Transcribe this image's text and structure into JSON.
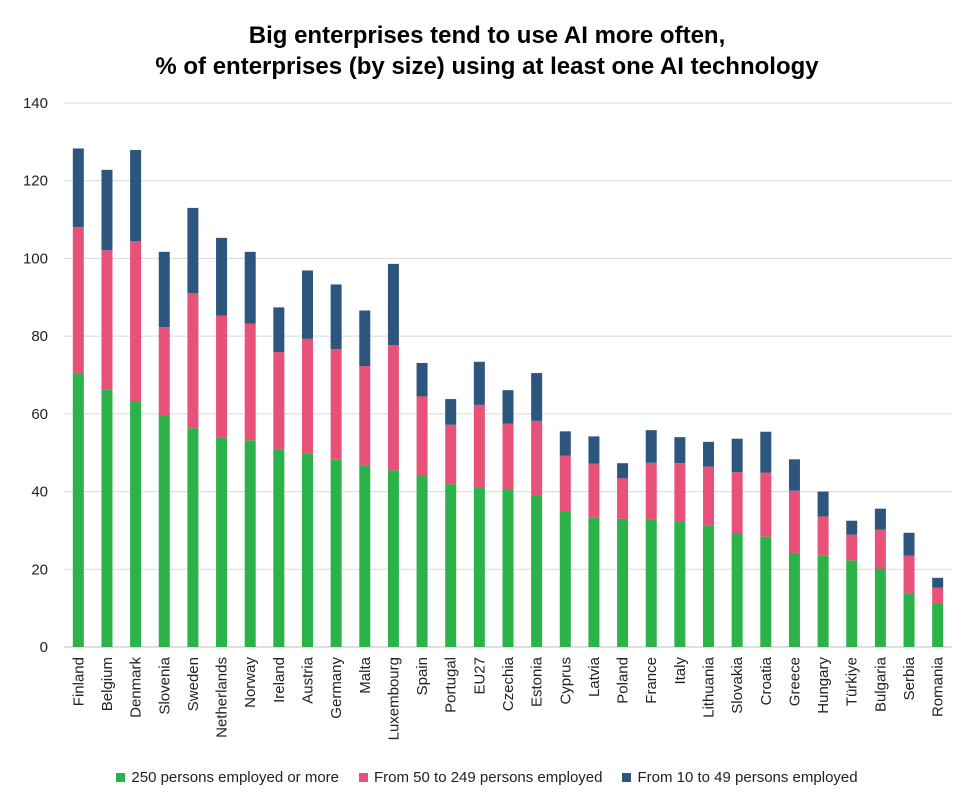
{
  "chart_data": {
    "type": "bar",
    "stacked": true,
    "title": "Big enterprises tend to use AI more often,",
    "subtitle": "% of enterprises (by size) using at least one AI technology",
    "categories": [
      "Finland",
      "Belgium",
      "Denmark",
      "Slovenia",
      "Sweden",
      "Netherlands",
      "Norway",
      "Ireland",
      "Austria",
      "Germany",
      "Malta",
      "Luxembourg",
      "Spain",
      "Portugal",
      "EU27",
      "Czechia",
      "Estonia",
      "Cyprus",
      "Latvia",
      "Poland",
      "France",
      "Italy",
      "Lithuania",
      "Slovakia",
      "Croatia",
      "Greece",
      "Hungary",
      "Türkiye",
      "Bulgaria",
      "Serbia",
      "Romania"
    ],
    "series": [
      {
        "name": "250 persons employed or more",
        "color": "#2bb34a",
        "values": [
          70.4,
          66.2,
          63.3,
          59.7,
          56.3,
          54.0,
          53.2,
          50.8,
          49.9,
          48.2,
          46.6,
          45.5,
          44.0,
          41.9,
          41.2,
          40.4,
          39.0,
          35.0,
          33.4,
          33.0,
          32.7,
          32.4,
          31.3,
          29.2,
          28.4,
          24.2,
          23.5,
          22.3,
          20.2,
          13.8,
          11.3
        ]
      },
      {
        "name": "From 50 to 249 persons employed",
        "color": "#e8527a",
        "values": [
          37.7,
          35.9,
          41.1,
          22.6,
          34.8,
          31.3,
          30.0,
          25.1,
          29.4,
          28.5,
          25.7,
          32.2,
          20.5,
          15.3,
          21.1,
          17.1,
          19.2,
          14.2,
          13.8,
          10.4,
          14.7,
          14.9,
          15.1,
          15.8,
          16.5,
          16.0,
          10.1,
          6.6,
          10.0,
          9.7,
          4.0
        ]
      },
      {
        "name": "From 10 to 49 persons employed",
        "color": "#2d567e",
        "values": [
          20.2,
          20.7,
          23.5,
          19.4,
          21.9,
          20.0,
          18.5,
          11.5,
          17.6,
          16.6,
          14.3,
          20.9,
          8.6,
          6.6,
          11.1,
          8.6,
          12.3,
          6.3,
          7.0,
          3.9,
          8.4,
          6.7,
          6.4,
          8.6,
          10.5,
          8.1,
          6.4,
          3.6,
          5.4,
          5.9,
          2.5
        ]
      }
    ],
    "ylim": [
      0,
      140
    ],
    "yticks": [
      "0",
      "20",
      "40",
      "60",
      "80",
      "100",
      "120",
      "140"
    ],
    "xlabel": "",
    "ylabel": "",
    "grid": true,
    "legend_position": "bottom"
  }
}
